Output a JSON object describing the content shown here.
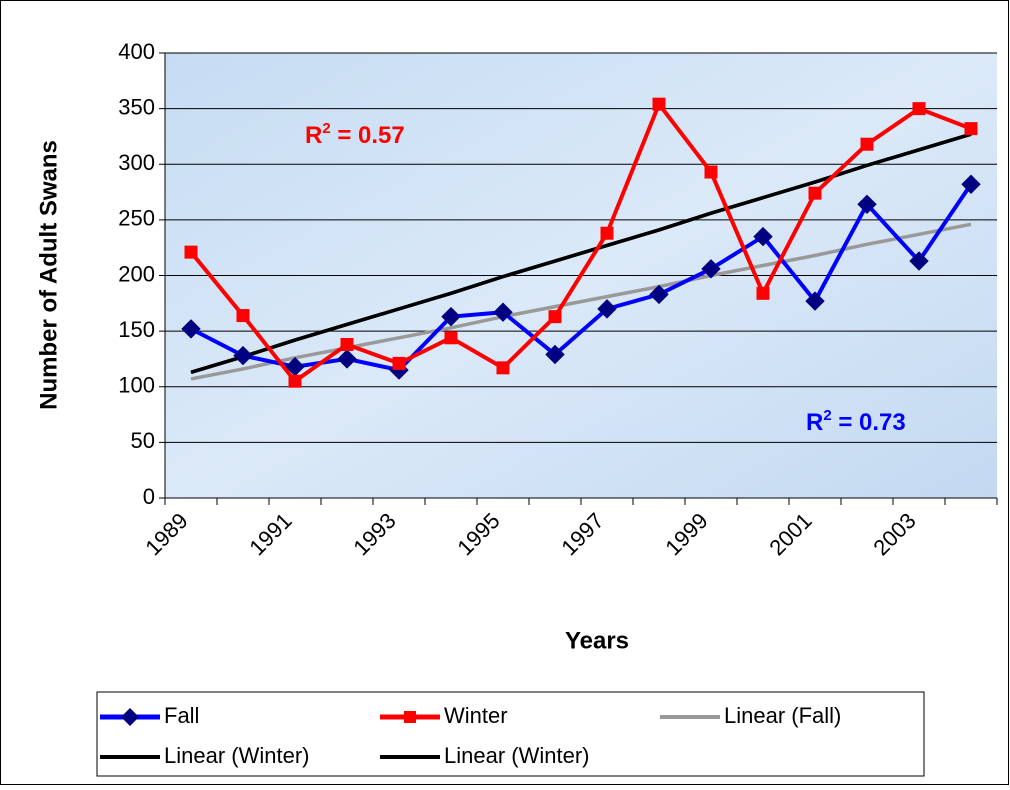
{
  "chart_data": {
    "type": "line",
    "y_label": "Number of Adult Swans",
    "x_label": "Years",
    "categories": [
      "1989",
      null,
      "1991",
      null,
      "1993",
      null,
      "1995",
      null,
      "1997",
      null,
      "1999",
      null,
      "2001",
      null,
      "2003",
      null
    ],
    "series": [
      {
        "name": "Fall",
        "color": "#0000ff",
        "marker": "diamond",
        "values": [
          152,
          128,
          118,
          125,
          115,
          163,
          167,
          129,
          170,
          183,
          206,
          235,
          177,
          264,
          213,
          282
        ]
      },
      {
        "name": "Winter",
        "color": "#ff0000",
        "marker": "square",
        "values": [
          221,
          164,
          105,
          138,
          121,
          144,
          117,
          163,
          238,
          354,
          293,
          184,
          274,
          318,
          350,
          332
        ]
      },
      {
        "name": "Linear (Fall)",
        "color": "#999999",
        "values": [
          107,
          116,
          126,
          135,
          144,
          153,
          163,
          172,
          181,
          190,
          200,
          209,
          218,
          228,
          237,
          246
        ]
      },
      {
        "name": "Linear (Winter)",
        "color": "#000000",
        "values": [
          113,
          127,
          142,
          156,
          170,
          184,
          199,
          213,
          227,
          241,
          256,
          270,
          284,
          299,
          313,
          327
        ]
      },
      {
        "name": "Linear (Winter)",
        "color": "#000000",
        "values": [
          113,
          127,
          142,
          156,
          170,
          184,
          199,
          213,
          227,
          241,
          256,
          270,
          284,
          299,
          313,
          327
        ]
      }
    ],
    "annotations": [
      {
        "parts": [
          "R",
          "2",
          " = 0.57"
        ],
        "color": "#ff0000"
      },
      {
        "parts": [
          "R",
          "2",
          " = 0.73"
        ],
        "color": "#0000ff"
      }
    ],
    "ylim": [
      0,
      400
    ],
    "yticks": [
      0,
      50,
      100,
      150,
      200,
      250,
      300,
      350,
      400
    ],
    "grid": true,
    "legend": "bottom"
  }
}
